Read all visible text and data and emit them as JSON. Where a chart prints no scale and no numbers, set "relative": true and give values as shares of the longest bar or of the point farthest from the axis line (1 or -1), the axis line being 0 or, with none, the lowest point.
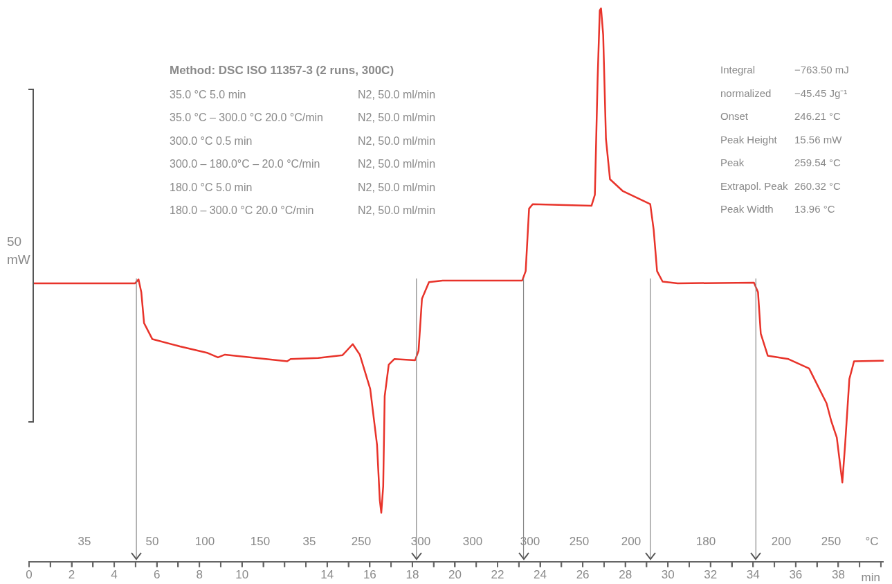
{
  "chart_data": {
    "type": "line",
    "relative": true,
    "xlabel": "min",
    "x": [
      0.2,
      4.98,
      5.14,
      5.27,
      5.4,
      5.79,
      7.08,
      8.39,
      8.87,
      9.2,
      12.12,
      12.28,
      13.58,
      14.72,
      15.2,
      15.53,
      16.02,
      16.34,
      16.47,
      16.54,
      16.63,
      16.7,
      16.89,
      17.15,
      18.13,
      18.29,
      18.45,
      18.78,
      19.42,
      23.16,
      23.32,
      23.48,
      23.65,
      26.41,
      26.57,
      26.7,
      26.8,
      26.86,
      26.96,
      27.09,
      27.28,
      27.87,
      29.17,
      29.33,
      29.49,
      29.75,
      30.46,
      34.04,
      34.23,
      34.36,
      34.69,
      35.66,
      36.63,
      37.45,
      37.67,
      37.93,
      38.19,
      38.32,
      38.52,
      38.74,
      40.1
    ],
    "series": [
      {
        "color": "#e8332a",
        "values": [
          0.503,
          0.503,
          0.51,
          0.487,
          0.431,
          0.402,
          0.389,
          0.377,
          0.369,
          0.374,
          0.362,
          0.366,
          0.368,
          0.373,
          0.393,
          0.374,
          0.312,
          0.211,
          0.111,
          0.088,
          0.136,
          0.299,
          0.356,
          0.366,
          0.364,
          0.381,
          0.475,
          0.505,
          0.508,
          0.508,
          0.525,
          0.638,
          0.646,
          0.643,
          0.663,
          0.874,
          0.996,
          1,
          0.952,
          0.764,
          0.691,
          0.67,
          0.646,
          0.6,
          0.525,
          0.506,
          0.503,
          0.504,
          0.487,
          0.412,
          0.372,
          0.366,
          0.349,
          0.286,
          0.254,
          0.224,
          0.143,
          0.211,
          0.33,
          0.362,
          0.363
        ]
      }
    ],
    "xlim": [
      0,
      40.1
    ],
    "xticks": [
      0,
      {
        "value": 1,
        "label": null
      },
      2,
      {
        "value": 3,
        "label": null
      },
      4,
      {
        "value": 5,
        "label": null
      },
      6,
      {
        "value": 7,
        "label": null
      },
      8,
      {
        "value": 9,
        "label": null
      },
      10,
      {
        "value": 11,
        "label": null
      },
      {
        "value": 12,
        "label": null
      },
      {
        "value": 13,
        "label": null
      },
      14,
      {
        "value": 15,
        "label": null
      },
      16,
      {
        "value": 17,
        "label": null
      },
      18,
      {
        "value": 19,
        "label": null
      },
      20,
      {
        "value": 21,
        "label": null
      },
      22,
      {
        "value": 23,
        "label": null
      },
      24,
      {
        "value": 25,
        "label": null
      },
      26,
      {
        "value": 27,
        "label": null
      },
      28,
      {
        "value": 29,
        "label": null
      },
      30,
      {
        "value": 31,
        "label": null
      },
      32,
      {
        "value": 33,
        "label": null
      },
      34,
      {
        "value": 35,
        "label": null
      },
      36,
      {
        "value": 37,
        "label": null
      },
      38,
      {
        "value": 39,
        "label": null
      },
      {
        "value": 40,
        "label": null
      }
    ],
    "ref_lines": [
      {
        "axis": "x",
        "value": 5.04,
        "color": "#888888"
      },
      {
        "axis": "x",
        "value": 18.19,
        "color": "#888888"
      },
      {
        "axis": "x",
        "value": 23.22,
        "color": "#888888"
      },
      {
        "axis": "x",
        "value": 29.17,
        "color": "#888888"
      },
      {
        "axis": "x",
        "value": 34.13,
        "color": "#888888"
      }
    ],
    "grid": false,
    "legend": false,
    "marker": "none",
    "line_style": "solid",
    "annotations": [
      "Method: DSC ISO 11357-3  (2 runs, 300C)",
      "35.0 °C 5.0 min",
      "N2, 50.0 ml/min",
      "35.0 °C – 300.0 °C 20.0 °C/min",
      "N2, 50.0 ml/min",
      "300.0 °C 0.5 min",
      "N2, 50.0 ml/min",
      "300.0 – 180.0°C – 20.0 °C/min",
      "N2, 50.0 ml/min",
      "180.0 °C 5.0 min",
      "N2, 50.0 ml/min",
      "180.0 – 300.0 °C 20.0 °C/min",
      "N2, 50.0 ml/min",
      "Integral",
      "−763.50 mJ",
      "normalized",
      "−45.45 Jg⁻¹",
      "Onset",
      "246.21 °C",
      "Peak Height",
      "15.56 mW",
      "Peak",
      "259.54 °C",
      "Extrapol. Peak",
      "260.32 °C",
      "Peak Width",
      "13.96 °C",
      "50 mW",
      "35",
      "50",
      "100",
      "150",
      "35",
      "250",
      "300",
      "300",
      "300",
      "250",
      "200",
      "180",
      "200",
      "250",
      "°C"
    ]
  }
}
